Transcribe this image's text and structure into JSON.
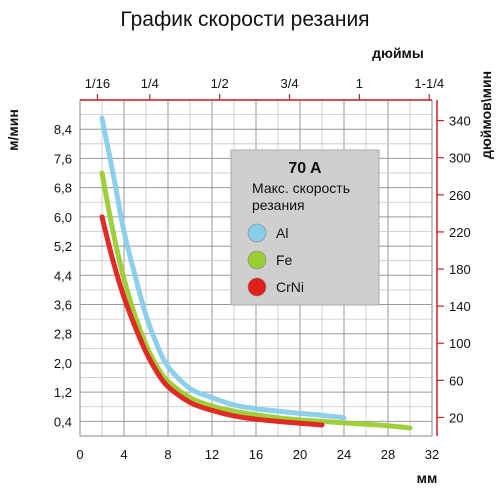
{
  "chart_data": {
    "type": "line",
    "title": "График скорости резания",
    "xlabel_bottom": "мм",
    "xlabel_top": "дюймы",
    "ylabel_left": "м/мин",
    "ylabel_right": "дюймов\\мин",
    "x_bottom_ticks": [
      "0",
      "4",
      "8",
      "12",
      "16",
      "20",
      "24",
      "28",
      "32"
    ],
    "x_top_ticks": [
      "1/16",
      "1/4",
      "1/2",
      "3/4",
      "1",
      "1-1/4"
    ],
    "y_left_ticks": [
      "0,4",
      "1,2",
      "2,0",
      "2,8",
      "3,6",
      "4,4",
      "5,2",
      "6,0",
      "6,8",
      "7,6",
      "8,4"
    ],
    "y_right_ticks": [
      "20",
      "60",
      "100",
      "140",
      "180",
      "220",
      "260",
      "300",
      "340"
    ],
    "xlim": [
      0,
      32
    ],
    "ylim": [
      0,
      9.2
    ],
    "grid": true,
    "legend": {
      "placement": "top-right",
      "title": "70 A",
      "subtitle_line1": "Макс. скорость",
      "subtitle_line2": "резания"
    },
    "series": [
      {
        "name": "Al",
        "color": "#87ceeb",
        "x": [
          2,
          3,
          4,
          5,
          6,
          7,
          8,
          10,
          12,
          14,
          16,
          18,
          20,
          22,
          24
        ],
        "y": [
          8.7,
          7.2,
          5.6,
          4.4,
          3.3,
          2.5,
          1.9,
          1.3,
          1.05,
          0.85,
          0.75,
          0.68,
          0.62,
          0.57,
          0.5
        ]
      },
      {
        "name": "Fe",
        "color": "#9acd32",
        "x": [
          2,
          3,
          4,
          5,
          6,
          7,
          8,
          10,
          12,
          14,
          16,
          18,
          20,
          22,
          24,
          26,
          28,
          30
        ],
        "y": [
          7.2,
          5.6,
          4.3,
          3.3,
          2.5,
          1.9,
          1.5,
          1.05,
          0.82,
          0.68,
          0.58,
          0.5,
          0.44,
          0.4,
          0.36,
          0.32,
          0.28,
          0.22
        ]
      },
      {
        "name": "CrNi",
        "color": "#e0201b",
        "x": [
          2,
          3,
          4,
          5,
          6,
          7,
          8,
          10,
          12,
          14,
          16,
          18,
          20,
          22
        ],
        "y": [
          6.0,
          4.8,
          3.8,
          3.0,
          2.3,
          1.75,
          1.35,
          0.92,
          0.7,
          0.55,
          0.46,
          0.4,
          0.35,
          0.3
        ]
      }
    ]
  }
}
